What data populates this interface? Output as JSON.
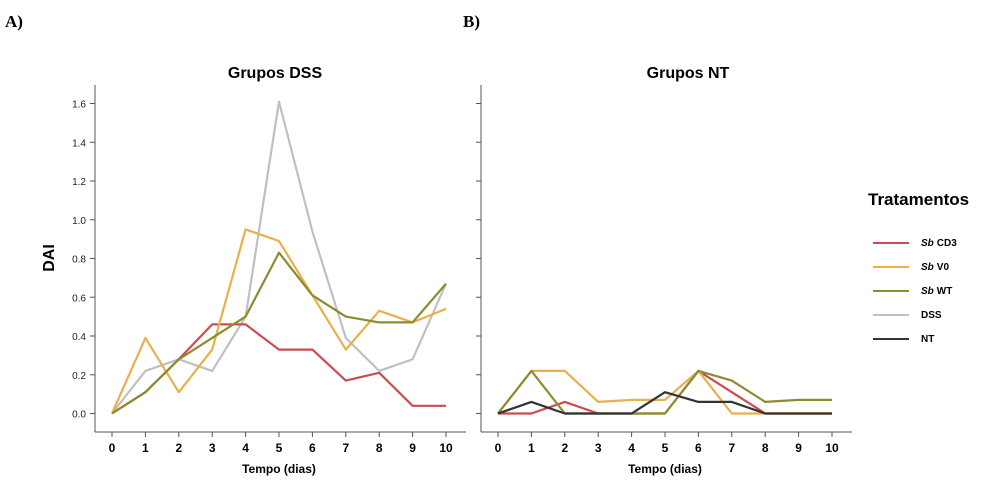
{
  "panel_labels": {
    "a": "A)",
    "b": "B)"
  },
  "legend": {
    "title": "Tratamentos",
    "items": [
      {
        "prefix": "Sb",
        "label": "CD3",
        "color": "#cc4b52"
      },
      {
        "prefix": "Sb",
        "label": "V0",
        "color": "#e8b04c"
      },
      {
        "prefix": "Sb",
        "label": "WT",
        "color": "#8c8c2e"
      },
      {
        "prefix": "",
        "label": "DSS",
        "color": "#c0c0c0"
      },
      {
        "prefix": "",
        "label": "NT",
        "color": "#333333"
      }
    ]
  },
  "chart_data": [
    {
      "type": "line",
      "title": "Grupos DSS",
      "xlabel": "Tempo (dias)",
      "ylabel": "DAI",
      "x": [
        0,
        1,
        2,
        3,
        4,
        5,
        6,
        7,
        8,
        9,
        10
      ],
      "xlim": [
        -0.4,
        10.5
      ],
      "ylim": [
        -0.08,
        1.68
      ],
      "yticks": [
        "0.0",
        "0.2",
        "0.4",
        "0.6",
        "0.8",
        "1.0",
        "1.2",
        "1.4",
        "1.6"
      ],
      "grid": false,
      "series": [
        {
          "name": "DSS",
          "color": "#c0c0c0",
          "values": [
            0,
            0.22,
            0.28,
            0.22,
            0.5,
            1.61,
            0.94,
            0.39,
            0.22,
            0.28,
            0.67
          ]
        },
        {
          "name": "Sb CD3",
          "color": "#cc4b52",
          "values": [
            0,
            0.11,
            0.28,
            0.46,
            0.46,
            0.33,
            0.33,
            0.17,
            0.21,
            0.04,
            0.04
          ]
        },
        {
          "name": "Sb V0",
          "color": "#e8b04c",
          "values": [
            0,
            0.39,
            0.11,
            0.33,
            0.95,
            0.89,
            0.61,
            0.33,
            0.53,
            0.47,
            0.54
          ]
        },
        {
          "name": "Sb WT",
          "color": "#8c8c2e",
          "values": [
            0,
            0.11,
            0.28,
            0.39,
            0.5,
            0.83,
            0.61,
            0.5,
            0.47,
            0.47,
            0.67
          ]
        }
      ]
    },
    {
      "type": "line",
      "title": "Grupos NT",
      "xlabel": "Tempo (dias)",
      "ylabel": "",
      "x": [
        0,
        1,
        2,
        3,
        4,
        5,
        6,
        7,
        8,
        9,
        10
      ],
      "xlim": [
        -0.4,
        10.5
      ],
      "ylim": [
        -0.08,
        1.68
      ],
      "grid": false,
      "series": [
        {
          "name": "Sb CD3",
          "color": "#cc4b52",
          "values": [
            0,
            0,
            0.06,
            0,
            0,
            0,
            0.22,
            0.11,
            0,
            0,
            0
          ]
        },
        {
          "name": "Sb V0",
          "color": "#e8b04c",
          "values": [
            0,
            0.22,
            0.22,
            0.06,
            0.07,
            0.07,
            0.22,
            0,
            0,
            0,
            0
          ]
        },
        {
          "name": "Sb WT",
          "color": "#8c8c2e",
          "values": [
            0,
            0.22,
            0,
            0,
            0,
            0,
            0.22,
            0.17,
            0.06,
            0.07,
            0.07
          ]
        },
        {
          "name": "NT",
          "color": "#333333",
          "values": [
            0,
            0.06,
            0,
            0,
            0,
            0.11,
            0.06,
            0.06,
            0,
            0,
            0
          ]
        }
      ]
    }
  ]
}
